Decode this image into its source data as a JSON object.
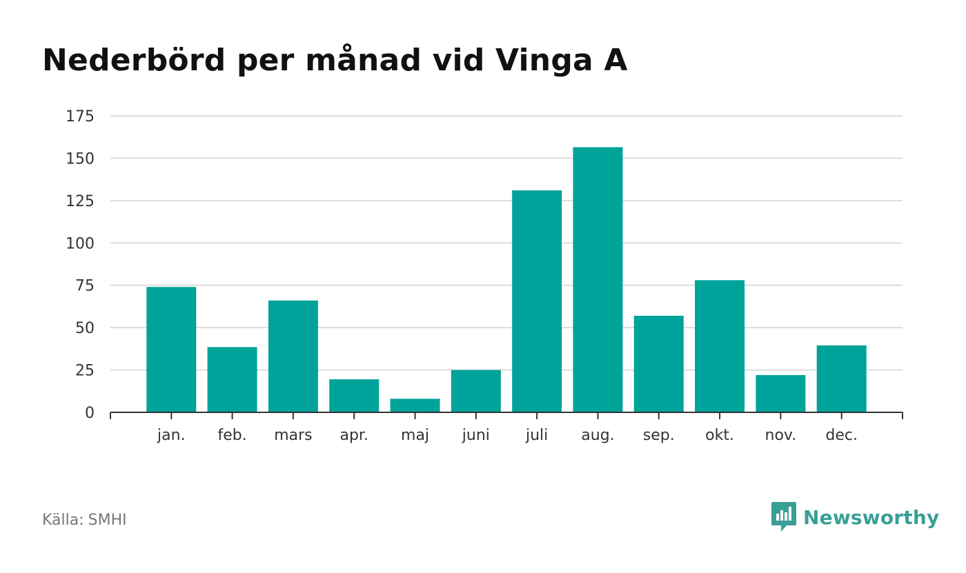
{
  "chart_data": {
    "type": "bar",
    "title": "Nederbörd per månad vid Vinga A",
    "categories": [
      "jan.",
      "feb.",
      "mars",
      "apr.",
      "maj",
      "juni",
      "juli",
      "aug.",
      "sep.",
      "okt.",
      "nov.",
      "dec."
    ],
    "series": [
      {
        "values": [
          74,
          38.5,
          66,
          19.5,
          8,
          25,
          131,
          156.5,
          57,
          78,
          22,
          39.5
        ]
      }
    ],
    "ylim": [
      0,
      175
    ],
    "yticks": [
      0,
      25,
      50,
      75,
      100,
      125,
      150,
      175
    ],
    "xlabel": "",
    "ylabel": "",
    "grid": true,
    "legend": "none",
    "bar_color": "#00a39a",
    "grid_color": "#dddddd",
    "axis_color": "#333333"
  },
  "footer": {
    "source_label": "Källa:",
    "source_value": "SMHI"
  },
  "brand": {
    "name": "Newsworthy",
    "icon": "newsworthy-logo-icon",
    "color": "#3a9f96"
  }
}
